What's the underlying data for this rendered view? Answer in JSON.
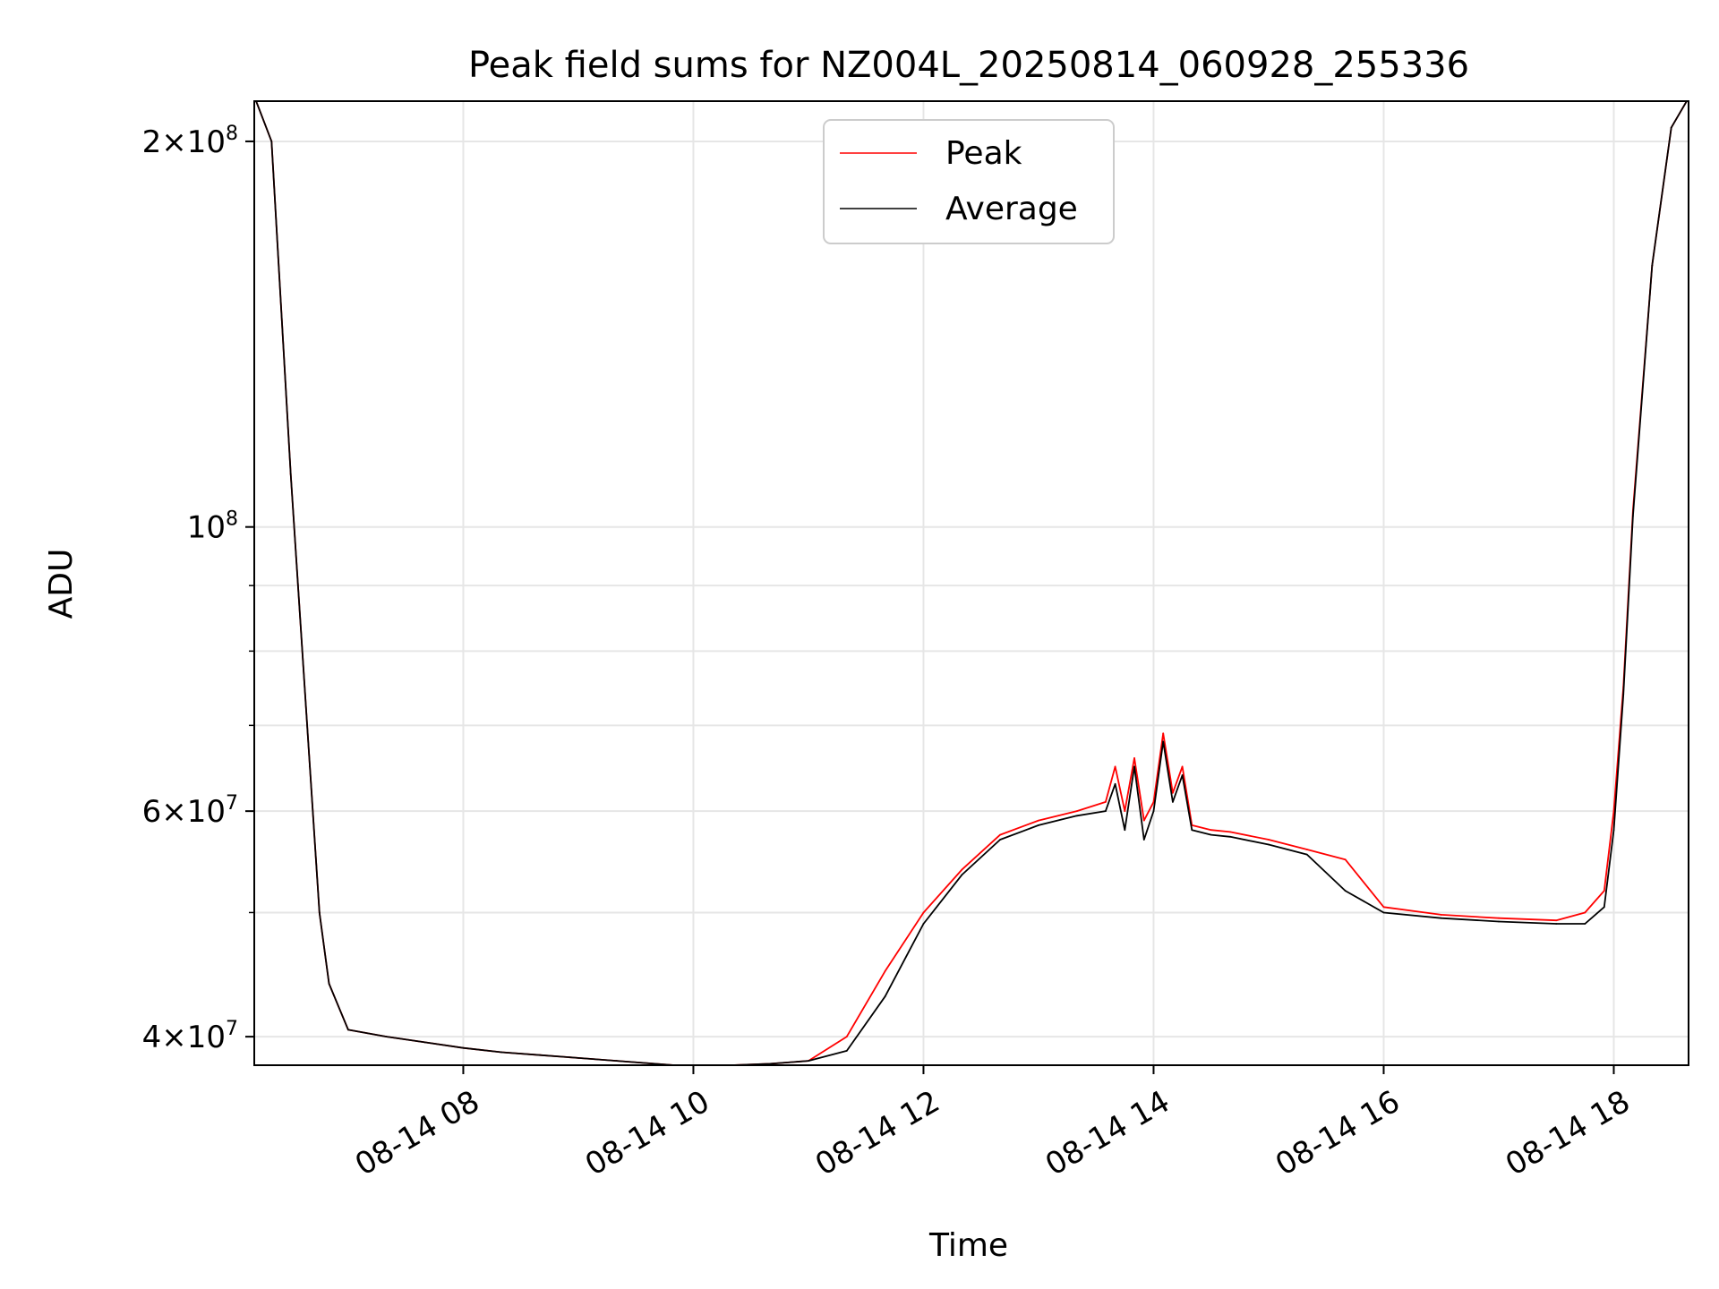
{
  "chart_data": {
    "type": "line",
    "title": "Peak field sums for NZ004L_20250814_060928_255336",
    "xlabel": "Time",
    "ylabel": "ADU",
    "y_scale": "log",
    "ylim": [
      38000000,
      215000000
    ],
    "xlim": [
      "2025-08-14 06:11",
      "2025-08-14 18:39"
    ],
    "grid": true,
    "legend": {
      "placement": "top-center"
    },
    "x_ticks": [
      {
        "t": "2025-08-14 08:00",
        "label": "08-14 08"
      },
      {
        "t": "2025-08-14 10:00",
        "label": "08-14 10"
      },
      {
        "t": "2025-08-14 12:00",
        "label": "08-14 12"
      },
      {
        "t": "2025-08-14 14:00",
        "label": "08-14 14"
      },
      {
        "t": "2025-08-14 16:00",
        "label": "08-14 16"
      },
      {
        "t": "2025-08-14 18:00",
        "label": "08-14 18"
      }
    ],
    "y_ticks": [
      {
        "value": 40000000,
        "mantissa": "4",
        "exponent": "7"
      },
      {
        "value": 60000000,
        "mantissa": "6",
        "exponent": "7"
      },
      {
        "value": 100000000,
        "mantissa": "",
        "exponent": "8"
      },
      {
        "value": 200000000,
        "mantissa": "2",
        "exponent": "8"
      }
    ],
    "y_minor_ticks": [
      50000000,
      70000000,
      80000000,
      90000000
    ],
    "series": [
      {
        "name": "Peak",
        "color": "#ff0000",
        "x": [
          "2025-08-14 06:12",
          "2025-08-14 06:20",
          "2025-08-14 06:30",
          "2025-08-14 06:40",
          "2025-08-14 06:45",
          "2025-08-14 06:50",
          "2025-08-14 07:00",
          "2025-08-14 07:20",
          "2025-08-14 07:40",
          "2025-08-14 08:00",
          "2025-08-14 08:20",
          "2025-08-14 08:40",
          "2025-08-14 09:00",
          "2025-08-14 09:20",
          "2025-08-14 09:40",
          "2025-08-14 10:00",
          "2025-08-14 10:20",
          "2025-08-14 10:40",
          "2025-08-14 11:00",
          "2025-08-14 11:20",
          "2025-08-14 11:40",
          "2025-08-14 12:00",
          "2025-08-14 12:20",
          "2025-08-14 12:40",
          "2025-08-14 13:00",
          "2025-08-14 13:20",
          "2025-08-14 13:35",
          "2025-08-14 13:40",
          "2025-08-14 13:45",
          "2025-08-14 13:50",
          "2025-08-14 13:55",
          "2025-08-14 14:00",
          "2025-08-14 14:05",
          "2025-08-14 14:10",
          "2025-08-14 14:15",
          "2025-08-14 14:20",
          "2025-08-14 14:30",
          "2025-08-14 14:40",
          "2025-08-14 15:00",
          "2025-08-14 15:20",
          "2025-08-14 15:40",
          "2025-08-14 16:00",
          "2025-08-14 16:30",
          "2025-08-14 17:00",
          "2025-08-14 17:30",
          "2025-08-14 17:45",
          "2025-08-14 17:55",
          "2025-08-14 18:00",
          "2025-08-14 18:05",
          "2025-08-14 18:10",
          "2025-08-14 18:20",
          "2025-08-14 18:30",
          "2025-08-14 18:38"
        ],
        "y": [
          215000000,
          200000000,
          110000000,
          65000000,
          50000000,
          44000000,
          40500000,
          40000000,
          39600000,
          39200000,
          38900000,
          38700000,
          38500000,
          38300000,
          38100000,
          37900000,
          38000000,
          38100000,
          38300000,
          40000000,
          45000000,
          50000000,
          54000000,
          57500000,
          59000000,
          60000000,
          61000000,
          65000000,
          60000000,
          66000000,
          59000000,
          61000000,
          69000000,
          62000000,
          65000000,
          58500000,
          58000000,
          57800000,
          57000000,
          56000000,
          55000000,
          50500000,
          49800000,
          49500000,
          49300000,
          50000000,
          52000000,
          60000000,
          75000000,
          103000000,
          160000000,
          205000000,
          215000000
        ]
      },
      {
        "name": "Average",
        "color": "#000000",
        "x": [
          "2025-08-14 06:12",
          "2025-08-14 06:20",
          "2025-08-14 06:30",
          "2025-08-14 06:40",
          "2025-08-14 06:45",
          "2025-08-14 06:50",
          "2025-08-14 07:00",
          "2025-08-14 07:20",
          "2025-08-14 07:40",
          "2025-08-14 08:00",
          "2025-08-14 08:20",
          "2025-08-14 08:40",
          "2025-08-14 09:00",
          "2025-08-14 09:20",
          "2025-08-14 09:40",
          "2025-08-14 10:00",
          "2025-08-14 10:20",
          "2025-08-14 10:40",
          "2025-08-14 11:00",
          "2025-08-14 11:20",
          "2025-08-14 11:40",
          "2025-08-14 12:00",
          "2025-08-14 12:20",
          "2025-08-14 12:40",
          "2025-08-14 13:00",
          "2025-08-14 13:20",
          "2025-08-14 13:35",
          "2025-08-14 13:40",
          "2025-08-14 13:45",
          "2025-08-14 13:50",
          "2025-08-14 13:55",
          "2025-08-14 14:00",
          "2025-08-14 14:05",
          "2025-08-14 14:10",
          "2025-08-14 14:15",
          "2025-08-14 14:20",
          "2025-08-14 14:30",
          "2025-08-14 14:40",
          "2025-08-14 15:00",
          "2025-08-14 15:20",
          "2025-08-14 15:40",
          "2025-08-14 16:00",
          "2025-08-14 16:30",
          "2025-08-14 17:00",
          "2025-08-14 17:30",
          "2025-08-14 17:45",
          "2025-08-14 17:55",
          "2025-08-14 18:00",
          "2025-08-14 18:05",
          "2025-08-14 18:10",
          "2025-08-14 18:20",
          "2025-08-14 18:30",
          "2025-08-14 18:38"
        ],
        "y": [
          215000000,
          200000000,
          110000000,
          65000000,
          50000000,
          44000000,
          40500000,
          40000000,
          39600000,
          39200000,
          38900000,
          38700000,
          38500000,
          38300000,
          38100000,
          37900000,
          38000000,
          38100000,
          38300000,
          39000000,
          43000000,
          49000000,
          53500000,
          57000000,
          58500000,
          59500000,
          60000000,
          63000000,
          58000000,
          65000000,
          57000000,
          60000000,
          68000000,
          61000000,
          64000000,
          58000000,
          57500000,
          57300000,
          56500000,
          55500000,
          52000000,
          50000000,
          49500000,
          49200000,
          49000000,
          49000000,
          50500000,
          58000000,
          74000000,
          102000000,
          160000000,
          205000000,
          215000000
        ]
      }
    ]
  }
}
